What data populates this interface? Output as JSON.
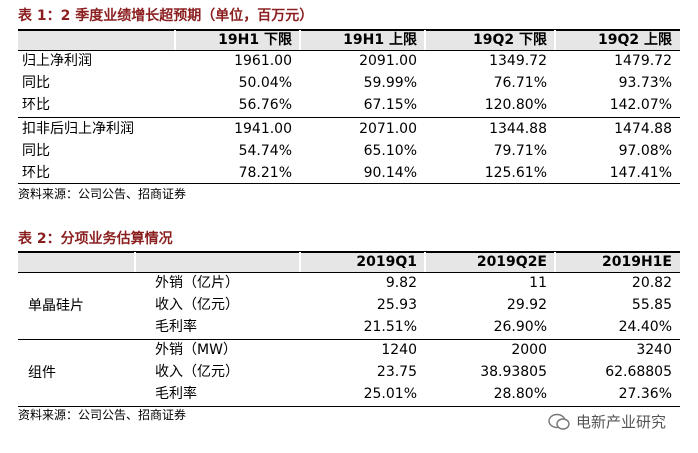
{
  "table1": {
    "title": "表 1：2 季度业绩增长超预期（单位，百万元）",
    "header": [
      "19H1 下限",
      "19H1 上限",
      "19Q2 下限",
      "19Q2 上限"
    ],
    "rows": [
      [
        "归上净利润",
        "1961.00",
        "2091.00",
        "1349.72",
        "1479.72"
      ],
      [
        "同比",
        "50.04%",
        "59.99%",
        "76.71%",
        "93.73%"
      ],
      [
        "环比",
        "56.76%",
        "67.15%",
        "120.80%",
        "142.07%"
      ],
      [
        "扣非后归上净利润",
        "1941.00",
        "2071.00",
        "1344.88",
        "1474.88"
      ],
      [
        "同比",
        "54.74%",
        "65.10%",
        "79.71%",
        "97.08%"
      ],
      [
        "环比",
        "78.21%",
        "90.14%",
        "125.61%",
        "147.41%"
      ]
    ],
    "source": "资料来源：公司公告、招商证券"
  },
  "table2": {
    "title": "表 2：分项业务估算情况",
    "header": [
      "2019Q1",
      "2019Q2E",
      "2019H1E"
    ],
    "groups": [
      {
        "name": "单晶硅片",
        "rows": [
          [
            "外销（亿片）",
            "9.82",
            "11",
            "20.82"
          ],
          [
            "收入（亿元）",
            "25.93",
            "29.92",
            "55.85"
          ],
          [
            "毛利率",
            "21.51%",
            "26.90%",
            "24.40%"
          ]
        ]
      },
      {
        "name": "组件",
        "rows": [
          [
            "外销（MW）",
            "1240",
            "2000",
            "3240"
          ],
          [
            "收入（亿元）",
            "23.75",
            "38.93805",
            "62.68805"
          ],
          [
            "毛利率",
            "25.01%",
            "28.80%",
            "27.36%"
          ]
        ]
      }
    ],
    "source": "资料来源：公司公告、招商证券"
  },
  "watermark": "电新产业研究"
}
